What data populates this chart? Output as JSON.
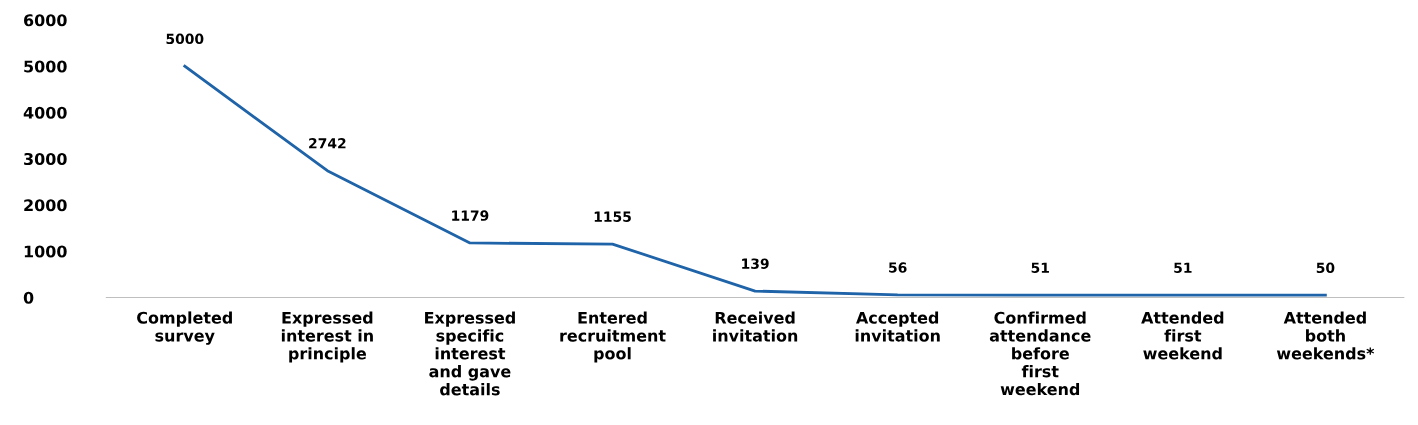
{
  "chart_data": {
    "type": "line",
    "categories": [
      "Completed\nsurvey",
      "Expressed\ninterest in\nprinciple",
      "Expressed\nspecific\ninterest\nand gave\ndetails",
      "Entered\nrecruitment\npool",
      "Received\ninvitation",
      "Accepted\ninvitation",
      "Confirmed\nattendance\nbefore\nfirst\nweekend",
      "Attended\nfirst\nweekend",
      "Attended\nboth\nweekends*"
    ],
    "series": [
      {
        "color": "#1f63a8",
        "values": [
          5000,
          2742,
          1179,
          1155,
          139,
          56,
          51,
          51,
          50
        ]
      }
    ],
    "ylim": [
      0,
      6000
    ],
    "yticks": [
      0,
      1000,
      2000,
      3000,
      4000,
      5000,
      6000
    ],
    "data_labels": true,
    "grid": false,
    "legend": false,
    "marker": "none",
    "line_style": "solid"
  }
}
